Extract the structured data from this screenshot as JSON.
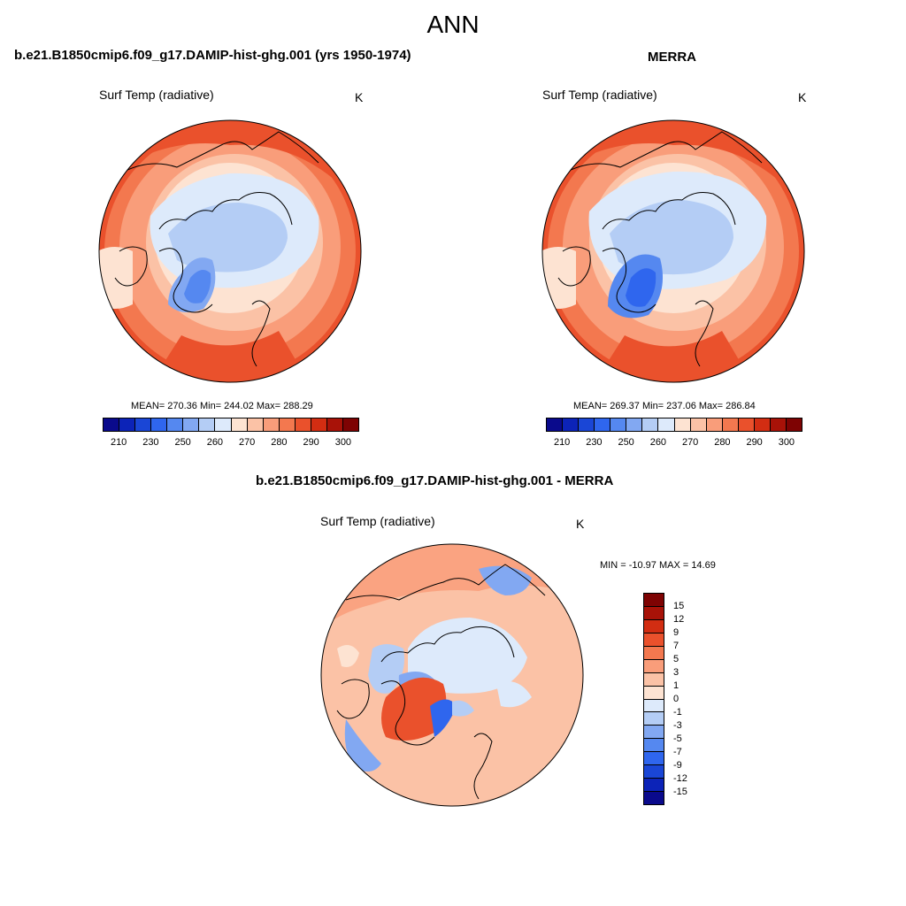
{
  "title": "ANN",
  "panels": [
    {
      "title": "b.e21.B1850cmip6.f09_g17.DAMIP-hist-ghg.001 (yrs 1950-1974)",
      "variable": "Surf Temp (radiative)",
      "units": "K",
      "stats": "MEAN= 270.36  Min= 244.02  Max= 288.29"
    },
    {
      "title": "MERRA",
      "variable": "Surf Temp (radiative)",
      "units": "K",
      "stats": "MEAN= 269.37  Min= 237.06  Max= 286.84"
    },
    {
      "title": "b.e21.B1850cmip6.f09_g17.DAMIP-hist-ghg.001 - MERRA",
      "variable": "Surf Temp (radiative)",
      "units": "K",
      "stats": "MIN = -10.97 MAX =  14.69"
    }
  ],
  "colorbar_abs": {
    "colors": [
      "#0a0a8c",
      "#0c23b8",
      "#1a46d6",
      "#2f66ee",
      "#5588f0",
      "#82a8f2",
      "#b4cdf5",
      "#ddeafb",
      "#fde3d2",
      "#fbc2a6",
      "#f99d7a",
      "#f3784f",
      "#ea512c",
      "#d22d12",
      "#a81208",
      "#7e0303"
    ],
    "tick_labels": [
      "210",
      "230",
      "250",
      "260",
      "270",
      "280",
      "290",
      "300"
    ]
  },
  "colorbar_diff": {
    "colors": [
      "#7e0303",
      "#a81208",
      "#d22d12",
      "#ea512c",
      "#f3784f",
      "#f99d7a",
      "#fbc2a6",
      "#fde3d2",
      "#ddeafb",
      "#b4cdf5",
      "#82a8f2",
      "#5588f0",
      "#2f66ee",
      "#1a46d6",
      "#0c23b8",
      "#0a0a8c"
    ],
    "tick_labels": [
      "15",
      "12",
      "9",
      "7",
      "5",
      "3",
      "1",
      "0",
      "-1",
      "-3",
      "-5",
      "-7",
      "-9",
      "-12",
      "-15"
    ]
  }
}
